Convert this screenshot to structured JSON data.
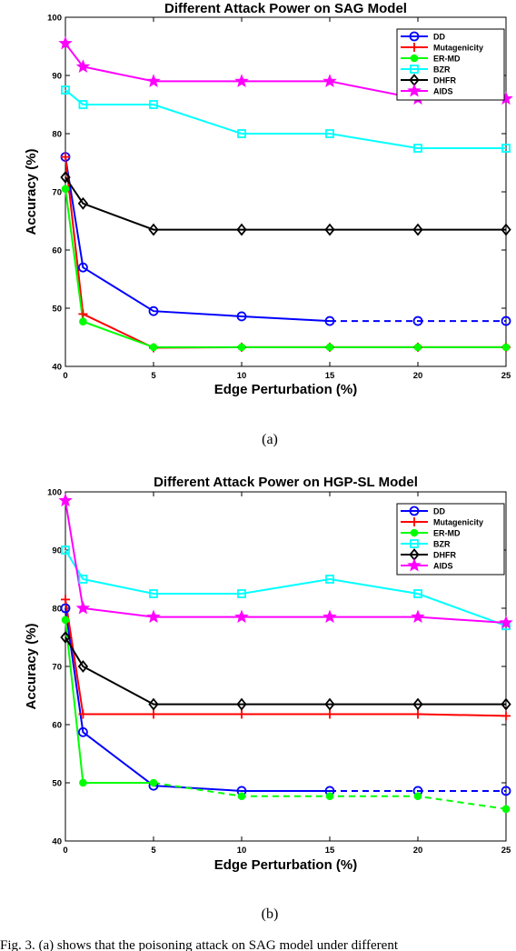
{
  "chart_data": [
    {
      "type": "line",
      "title": "Different Attack Power on SAG Model",
      "xlabel": "Edge Perturbation (%)",
      "ylabel": "Accuracy (%)",
      "x": [
        0,
        1,
        5,
        10,
        15,
        20,
        25
      ],
      "xticks": [
        "0",
        "5",
        "10",
        "15",
        "20",
        "25"
      ],
      "yticks": [
        "40",
        "50",
        "60",
        "70",
        "80",
        "90",
        "100"
      ],
      "xlim": [
        0,
        25
      ],
      "ylim": [
        40,
        100
      ],
      "legend_position": "top-right",
      "caption": "(a)",
      "series": [
        {
          "name": "DD",
          "color": "#0000ff",
          "marker": "circle",
          "values": [
            76,
            57,
            49.5,
            48.6,
            47.8,
            47.8,
            47.8
          ],
          "dashed_from_index": 4
        },
        {
          "name": "Mutagenicity",
          "color": "#ff0000",
          "marker": "plus",
          "values": [
            76,
            49,
            43.2,
            43.3,
            43.3,
            43.3,
            43.3
          ]
        },
        {
          "name": "ER-MD",
          "color": "#00ff00",
          "marker": "dot",
          "values": [
            70.5,
            47.7,
            43.3,
            43.3,
            43.3,
            43.3,
            43.3
          ]
        },
        {
          "name": "BZR",
          "color": "#00ffff",
          "marker": "square",
          "values": [
            87.5,
            85,
            85,
            80,
            80,
            77.5,
            77.5
          ]
        },
        {
          "name": "DHFR",
          "color": "#000000",
          "marker": "diamond",
          "values": [
            72.5,
            68,
            63.5,
            63.5,
            63.5,
            63.5,
            63.5
          ]
        },
        {
          "name": "AIDS",
          "color": "#ff00ff",
          "marker": "star",
          "values": [
            95.5,
            91.5,
            89,
            89,
            89,
            86,
            86
          ]
        }
      ]
    },
    {
      "type": "line",
      "title": "Different Attack Power on HGP-SL Model",
      "xlabel": "Edge Perturbation (%)",
      "ylabel": "Accuracy (%)",
      "x": [
        0,
        1,
        5,
        10,
        15,
        20,
        25
      ],
      "xticks": [
        "0",
        "5",
        "10",
        "15",
        "20",
        "25"
      ],
      "yticks": [
        "40",
        "50",
        "60",
        "70",
        "80",
        "90",
        "100"
      ],
      "xlim": [
        0,
        25
      ],
      "ylim": [
        40,
        100
      ],
      "legend_position": "top-right",
      "caption": "(b)",
      "series": [
        {
          "name": "DD",
          "color": "#0000ff",
          "marker": "circle",
          "values": [
            80,
            58.7,
            49.5,
            48.6,
            48.6,
            48.6,
            48.6
          ],
          "dashed_from_index": 4
        },
        {
          "name": "Mutagenicity",
          "color": "#ff0000",
          "marker": "plus",
          "values": [
            81.5,
            61.8,
            61.8,
            61.8,
            61.8,
            61.8,
            61.5
          ]
        },
        {
          "name": "ER-MD",
          "color": "#00ff00",
          "marker": "dot",
          "values": [
            78,
            50,
            50,
            47.7,
            47.7,
            47.7,
            45.5
          ],
          "dashed_from_index": 2
        },
        {
          "name": "BZR",
          "color": "#00ffff",
          "marker": "square",
          "values": [
            90,
            85,
            82.5,
            82.5,
            85,
            82.5,
            77
          ]
        },
        {
          "name": "DHFR",
          "color": "#000000",
          "marker": "diamond",
          "values": [
            75,
            70,
            63.5,
            63.5,
            63.5,
            63.5,
            63.5
          ]
        },
        {
          "name": "AIDS",
          "color": "#ff00ff",
          "marker": "star",
          "values": [
            98.5,
            80,
            78.5,
            78.5,
            78.5,
            78.5,
            77.5
          ]
        }
      ]
    }
  ],
  "footer_text": "Fig. 3. (a) shows that the poisoning attack on SAG model under different"
}
